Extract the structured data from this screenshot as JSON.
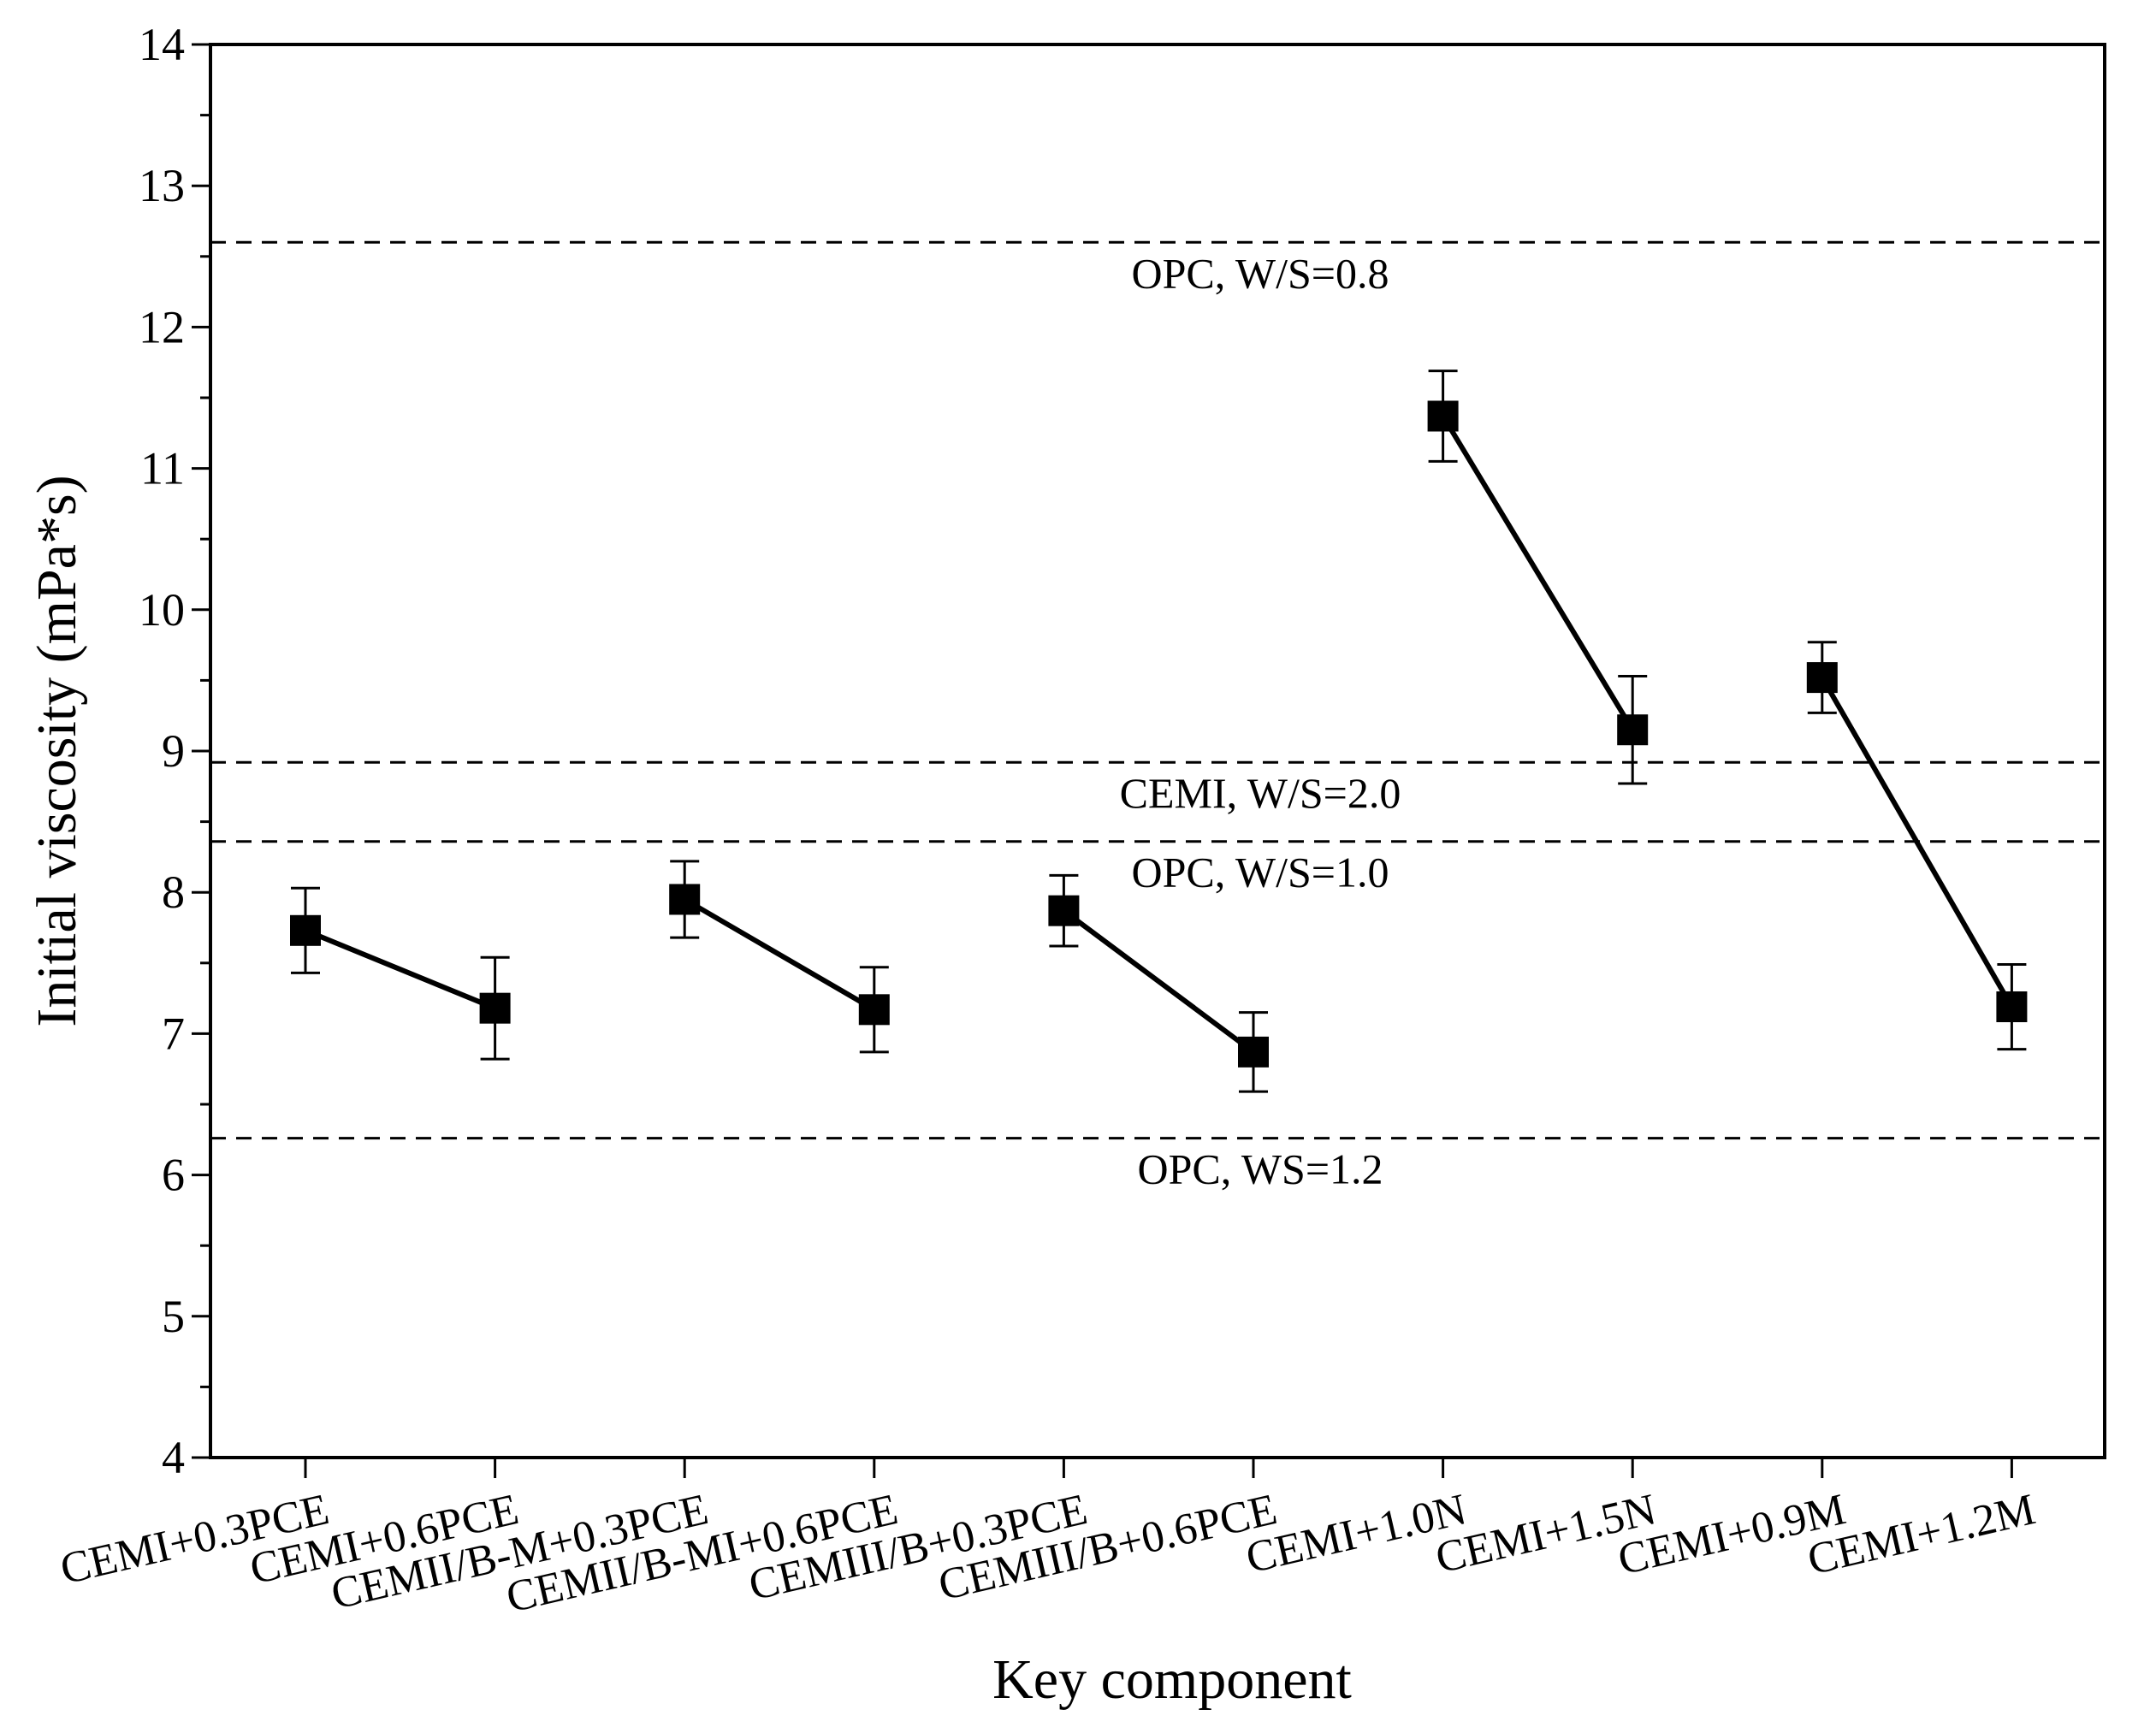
{
  "chart_data": {
    "type": "scatter",
    "title": "",
    "xlabel": "Key component",
    "ylabel": "Initial viscosity (mPa*s)",
    "ylim": [
      4,
      14
    ],
    "yticks": [
      "4",
      "5",
      "6",
      "7",
      "8",
      "9",
      "10",
      "11",
      "12",
      "13",
      "14"
    ],
    "categories": [
      "CEMI+0.3PCE",
      "CEMI+0.6PCE",
      "CEMII/B-M+0.3PCE",
      "CEMII/B-MI+0.6PCE",
      "CEMIII/B+0.3PCE",
      "CEMIII/B+0.6PCE",
      "CEMI+1.0N",
      "CEMI+1.5N",
      "CEMI+0.9M",
      "CEMI+1.2M"
    ],
    "values": [
      7.73,
      7.18,
      7.95,
      7.17,
      7.87,
      6.87,
      11.37,
      9.15,
      9.52,
      7.19
    ],
    "errors": [
      0.3,
      0.36,
      0.27,
      0.3,
      0.25,
      0.28,
      0.32,
      0.38,
      0.25,
      0.3
    ],
    "connected_pairs": [
      [
        0,
        1
      ],
      [
        2,
        3
      ],
      [
        4,
        5
      ],
      [
        6,
        7
      ],
      [
        8,
        9
      ]
    ],
    "reference_lines": [
      {
        "label": "OPC, W/S=0.8",
        "value": 12.6
      },
      {
        "label": "CEMI, W/S=2.0",
        "value": 8.92
      },
      {
        "label": "OPC, W/S=1.0",
        "value": 8.36
      },
      {
        "label": "OPC, WS=1.2",
        "value": 6.26
      }
    ],
    "grid": false,
    "colors": {
      "marker": "#000000",
      "line": "#000000",
      "reference": "#000000"
    }
  }
}
